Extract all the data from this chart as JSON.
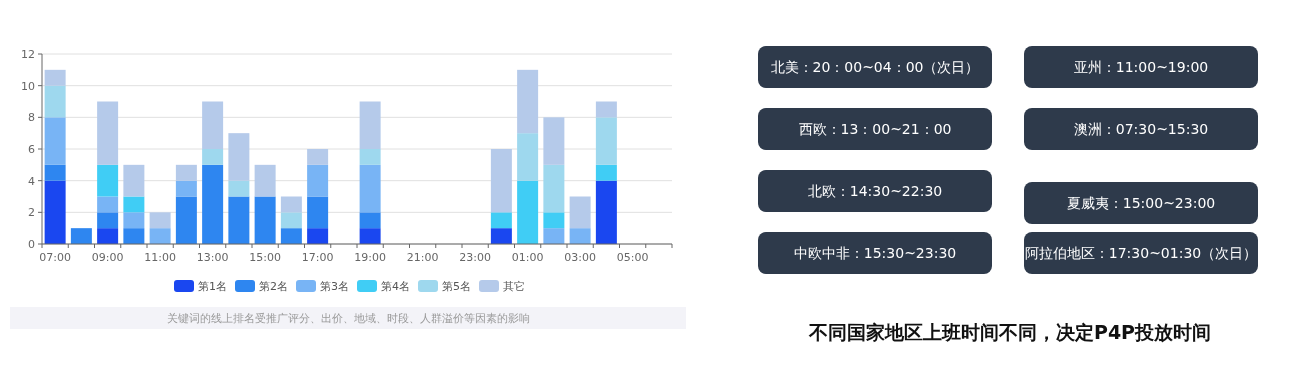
{
  "chart_data": [
    {
      "type": "bar",
      "stacked": true,
      "grid": "y",
      "legend": "bottom",
      "categories": [
        "07:00",
        null,
        "09:00",
        null,
        "11:00",
        null,
        "13:00",
        null,
        "15:00",
        null,
        "17:00",
        null,
        "19:00",
        null,
        "21:00",
        null,
        "23:00",
        null,
        "01:00",
        null,
        "03:00",
        null,
        "05:00",
        null
      ],
      "ylim": [
        0,
        12
      ],
      "yticks": [
        0,
        2,
        4,
        6,
        8,
        10,
        12
      ],
      "series": [
        {
          "name": "第1名",
          "color": "#1a47f0",
          "values": [
            4,
            0,
            1,
            0,
            0,
            0,
            0,
            0,
            0,
            0,
            1,
            0,
            1,
            0,
            0,
            0,
            0,
            1,
            0,
            0,
            0,
            4,
            0,
            0
          ]
        },
        {
          "name": "第2名",
          "color": "#2e86f0",
          "values": [
            1,
            1,
            1,
            1,
            0,
            3,
            5,
            3,
            3,
            1,
            2,
            0,
            1,
            0,
            0,
            0,
            0,
            0,
            0,
            0,
            0,
            0,
            0,
            0
          ]
        },
        {
          "name": "第3名",
          "color": "#78b4f5",
          "values": [
            3,
            0,
            1,
            1,
            1,
            1,
            0,
            0,
            0,
            0,
            2,
            0,
            3,
            0,
            0,
            0,
            0,
            0,
            0,
            1,
            1,
            0,
            0,
            0
          ]
        },
        {
          "name": "第4名",
          "color": "#40cdf5",
          "values": [
            0,
            0,
            2,
            1,
            0,
            0,
            0,
            0,
            0,
            0,
            0,
            0,
            0,
            0,
            0,
            0,
            0,
            1,
            4,
            1,
            0,
            1,
            0,
            0
          ]
        },
        {
          "name": "第5名",
          "color": "#9ed8ee",
          "values": [
            2,
            0,
            0,
            0,
            0,
            0,
            1,
            1,
            0,
            1,
            0,
            0,
            1,
            0,
            0,
            0,
            0,
            0,
            3,
            3,
            0,
            3,
            0,
            0
          ]
        },
        {
          "name": "其它",
          "color": "#b5caea",
          "values": [
            1,
            0,
            4,
            2,
            1,
            1,
            3,
            3,
            2,
            1,
            1,
            0,
            3,
            0,
            0,
            0,
            0,
            4,
            4,
            3,
            2,
            1,
            0,
            0
          ]
        }
      ],
      "annotations": [
        "关键词的线上排名受推广评分、出价、地域、时段、人群溢价等因素的影响"
      ]
    },
    {
      "type": "other",
      "annotations": [
        "北美：20：00~04：00（次日）",
        "亚州：11:00~19:00",
        "西欧：13：00~21：00",
        "澳洲：07:30~15:30",
        "北欧：14:30~22:30",
        "夏威夷：15:00~23:00",
        "中欧中非：15:30~23:30",
        "阿拉伯地区：17:30~01:30（次日）",
        "不同国家地区上班时间不同，决定P4P投放时间"
      ]
    }
  ]
}
